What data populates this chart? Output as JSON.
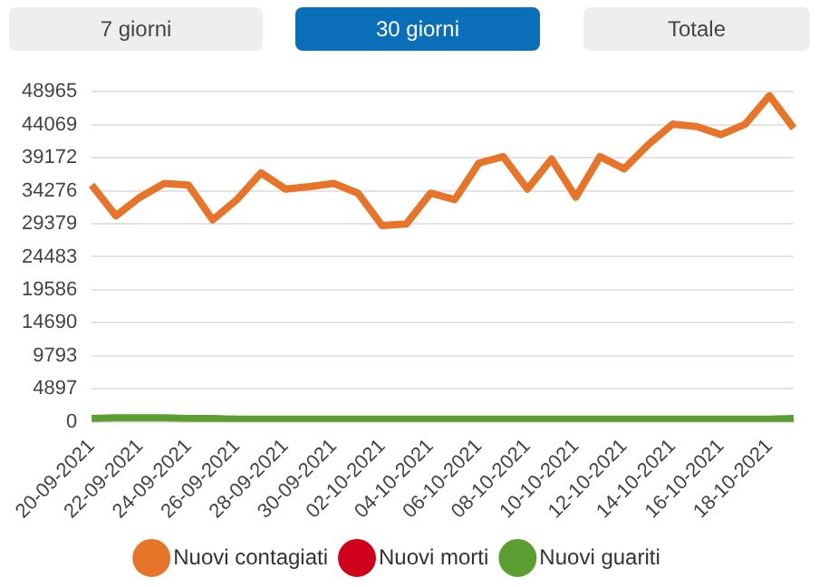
{
  "chart_data": {
    "type": "line",
    "annotations": [
      "7 giorni",
      "30 giorni",
      "Totale"
    ],
    "categories": [
      "20-09-2021",
      null,
      "22-09-2021",
      null,
      "24-09-2021",
      null,
      "26-09-2021",
      null,
      "28-09-2021",
      null,
      "30-09-2021",
      null,
      "02-10-2021",
      null,
      "04-10-2021",
      null,
      "06-10-2021",
      null,
      "08-10-2021",
      null,
      "10-10-2021",
      null,
      "12-10-2021",
      null,
      "14-10-2021",
      null,
      "16-10-2021",
      null,
      "18-10-2021",
      null
    ],
    "series": [
      {
        "name": "Nuovi contagiati",
        "color": "#e8742a",
        "values": [
          35130,
          30560,
          33320,
          35370,
          35130,
          29950,
          32960,
          36930,
          34530,
          34890,
          35370,
          33920,
          29110,
          29350,
          33920,
          32960,
          38380,
          39340,
          34530,
          38980,
          33320,
          39340,
          37530,
          41140,
          44150,
          43790,
          42590,
          44150,
          48360,
          43550
        ]
      },
      {
        "name": "Nuovi morti",
        "color": "#d0021b",
        "values": [
          null,
          null,
          null,
          null,
          null,
          null,
          null,
          null,
          null,
          null,
          null,
          null,
          null,
          null,
          null,
          null,
          null,
          null,
          null,
          null,
          null,
          null,
          null,
          null,
          null,
          null,
          null,
          null,
          null,
          null
        ]
      },
      {
        "name": "Nuovi guariti",
        "color": "#5c9e31",
        "values": [
          500,
          600,
          600,
          600,
          500,
          500,
          400,
          400,
          400,
          400,
          400,
          400,
          400,
          400,
          400,
          400,
          400,
          400,
          400,
          400,
          400,
          400,
          400,
          400,
          400,
          400,
          400,
          400,
          400,
          500
        ]
      }
    ],
    "ylim": [
      0,
      48965
    ],
    "yticks": [
      0,
      4897,
      9793,
      14690,
      19586,
      24483,
      29379,
      34276,
      39172,
      44069,
      48965
    ],
    "grid": "y",
    "legend": "bottom",
    "marker": "none",
    "line_style": "solid"
  }
}
